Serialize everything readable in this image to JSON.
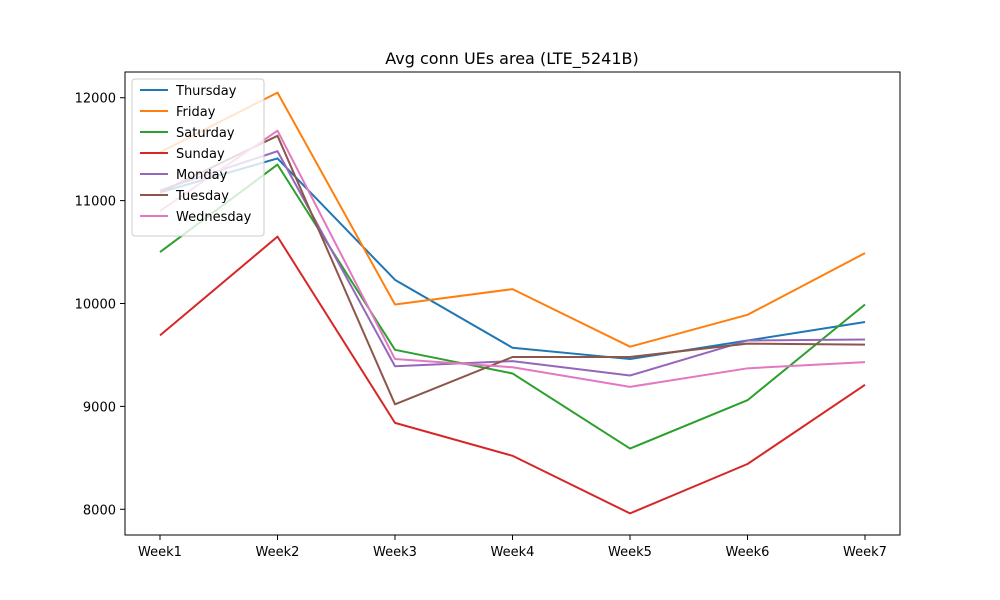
{
  "chart_data": {
    "type": "line",
    "title": "Avg conn UEs area (LTE_5241B)",
    "xlabel": "",
    "ylabel": "",
    "categories": [
      "Week1",
      "Week2",
      "Week3",
      "Week4",
      "Week5",
      "Week6",
      "Week7"
    ],
    "ylim": [
      7750,
      12250
    ],
    "yticks": [
      8000,
      9000,
      10000,
      11000,
      12000
    ],
    "grid": false,
    "legend_position": "top-left",
    "series": [
      {
        "name": "Thursday",
        "color": "#1f77b4",
        "values": [
          11080,
          11410,
          10230,
          9570,
          9460,
          9640,
          9820
        ]
      },
      {
        "name": "Friday",
        "color": "#ff7f0e",
        "values": [
          11470,
          12050,
          9990,
          10140,
          9580,
          9890,
          10490
        ]
      },
      {
        "name": "Saturday",
        "color": "#2ca02c",
        "values": [
          10500,
          11350,
          9550,
          9320,
          8590,
          9060,
          9990
        ]
      },
      {
        "name": "Sunday",
        "color": "#d62728",
        "values": [
          9690,
          10650,
          8840,
          8520,
          7960,
          8440,
          9210
        ]
      },
      {
        "name": "Monday",
        "color": "#9467bd",
        "values": [
          11100,
          11480,
          9390,
          9440,
          9300,
          9640,
          9650
        ]
      },
      {
        "name": "Tuesday",
        "color": "#8c564b",
        "values": [
          11080,
          11630,
          9020,
          9480,
          9480,
          9610,
          9600
        ]
      },
      {
        "name": "Wednesday",
        "color": "#e377c2",
        "values": [
          10900,
          11680,
          9460,
          9380,
          9190,
          9370,
          9430
        ]
      }
    ]
  }
}
